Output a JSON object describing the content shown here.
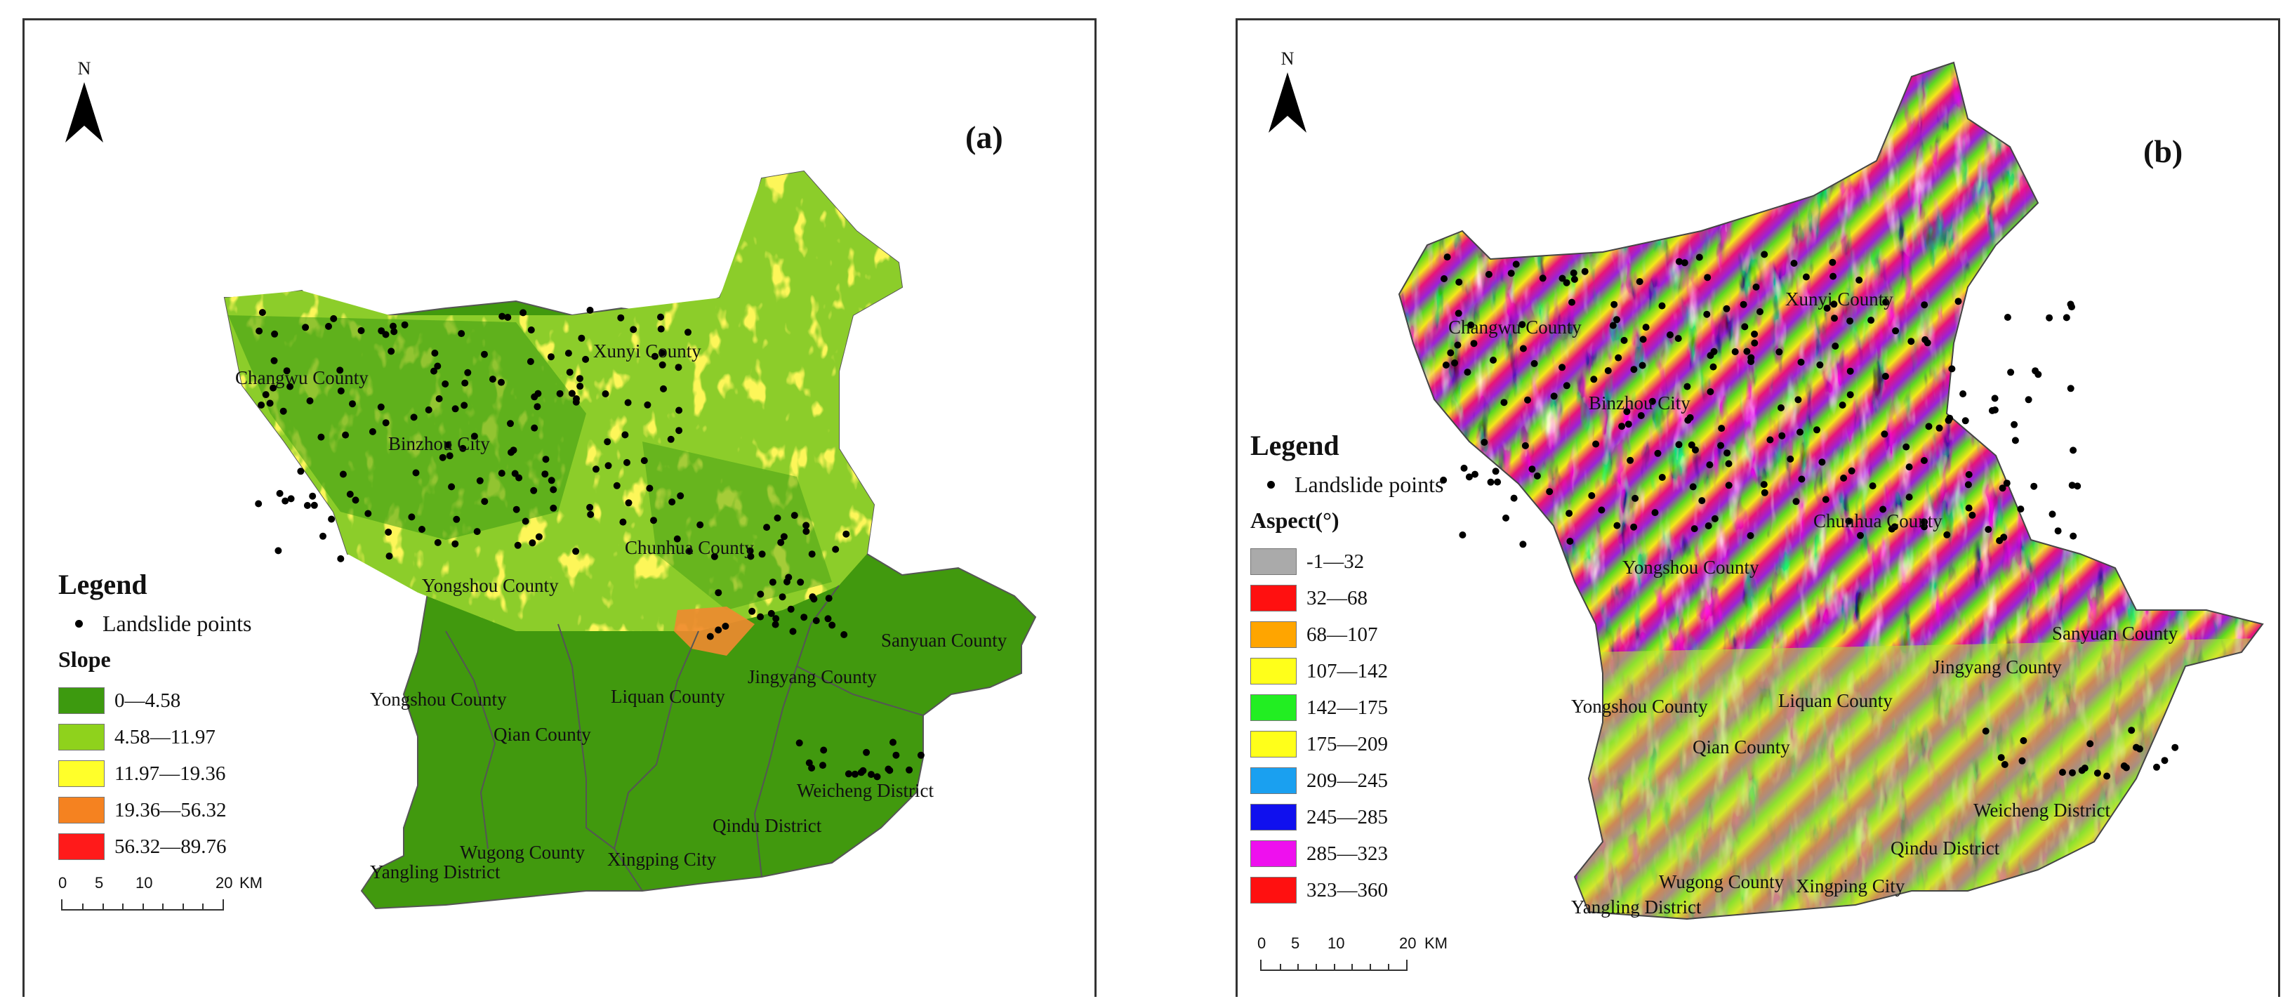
{
  "panel_a": {
    "tag": "(a)",
    "north": "N",
    "places": [
      "Changwu County",
      "Xunyi County",
      "Binzhou City",
      "Chunhua County",
      "Yongshou County",
      "Sanyuan County",
      "Jingyang County",
      "Liquan County",
      "Yongshou County",
      "Qian County",
      "Weicheng District",
      "Qindu District",
      "Wugong County",
      "Xingping City",
      "Yangling District"
    ],
    "legend": {
      "title": "Legend",
      "points_label": "Landslide points",
      "subtitle": "Slope",
      "classes": [
        {
          "label": "0—4.58",
          "color": "#3d9a0f"
        },
        {
          "label": "4.58—11.97",
          "color": "#8fd21c"
        },
        {
          "label": "11.97—19.36",
          "color": "#ffff2a"
        },
        {
          "label": "19.36—56.32",
          "color": "#f58220"
        },
        {
          "label": "56.32—89.76",
          "color": "#ff1a1a"
        }
      ]
    },
    "scale": {
      "ticks": [
        "0",
        "5",
        "10",
        "20"
      ],
      "unit": "KM"
    }
  },
  "panel_b": {
    "tag": "(b)",
    "north": "N",
    "places": [
      "Changwu County",
      "Xunyi County",
      "Binzhou City",
      "Chunhua County",
      "Yongshou County",
      "Sanyuan County",
      "Jingyang County",
      "Yongshou County",
      "Liquan County",
      "Qian County",
      "Weicheng District",
      "Qindu District",
      "Wugong County",
      "Xingping City",
      "Yangling District"
    ],
    "legend": {
      "title": "Legend",
      "points_label": "Landslide points",
      "subtitle": "Aspect(°)",
      "classes": [
        {
          "label": "-1—32",
          "color": "#aaaaaa"
        },
        {
          "label": "32—68",
          "color": "#ff1010"
        },
        {
          "label": "68—107",
          "color": "#ffa500"
        },
        {
          "label": "107—142",
          "color": "#ffff1a"
        },
        {
          "label": "142—175",
          "color": "#22ee22"
        },
        {
          "label": "175—209",
          "color": "#ffff1a"
        },
        {
          "label": "209—245",
          "color": "#1aa0f0"
        },
        {
          "label": "245—285",
          "color": "#1010ee"
        },
        {
          "label": "285—323",
          "color": "#ee10ee"
        },
        {
          "label": "323—360",
          "color": "#ff1010"
        }
      ]
    },
    "scale": {
      "ticks": [
        "0",
        "5",
        "10",
        "20"
      ],
      "unit": "KM"
    }
  }
}
